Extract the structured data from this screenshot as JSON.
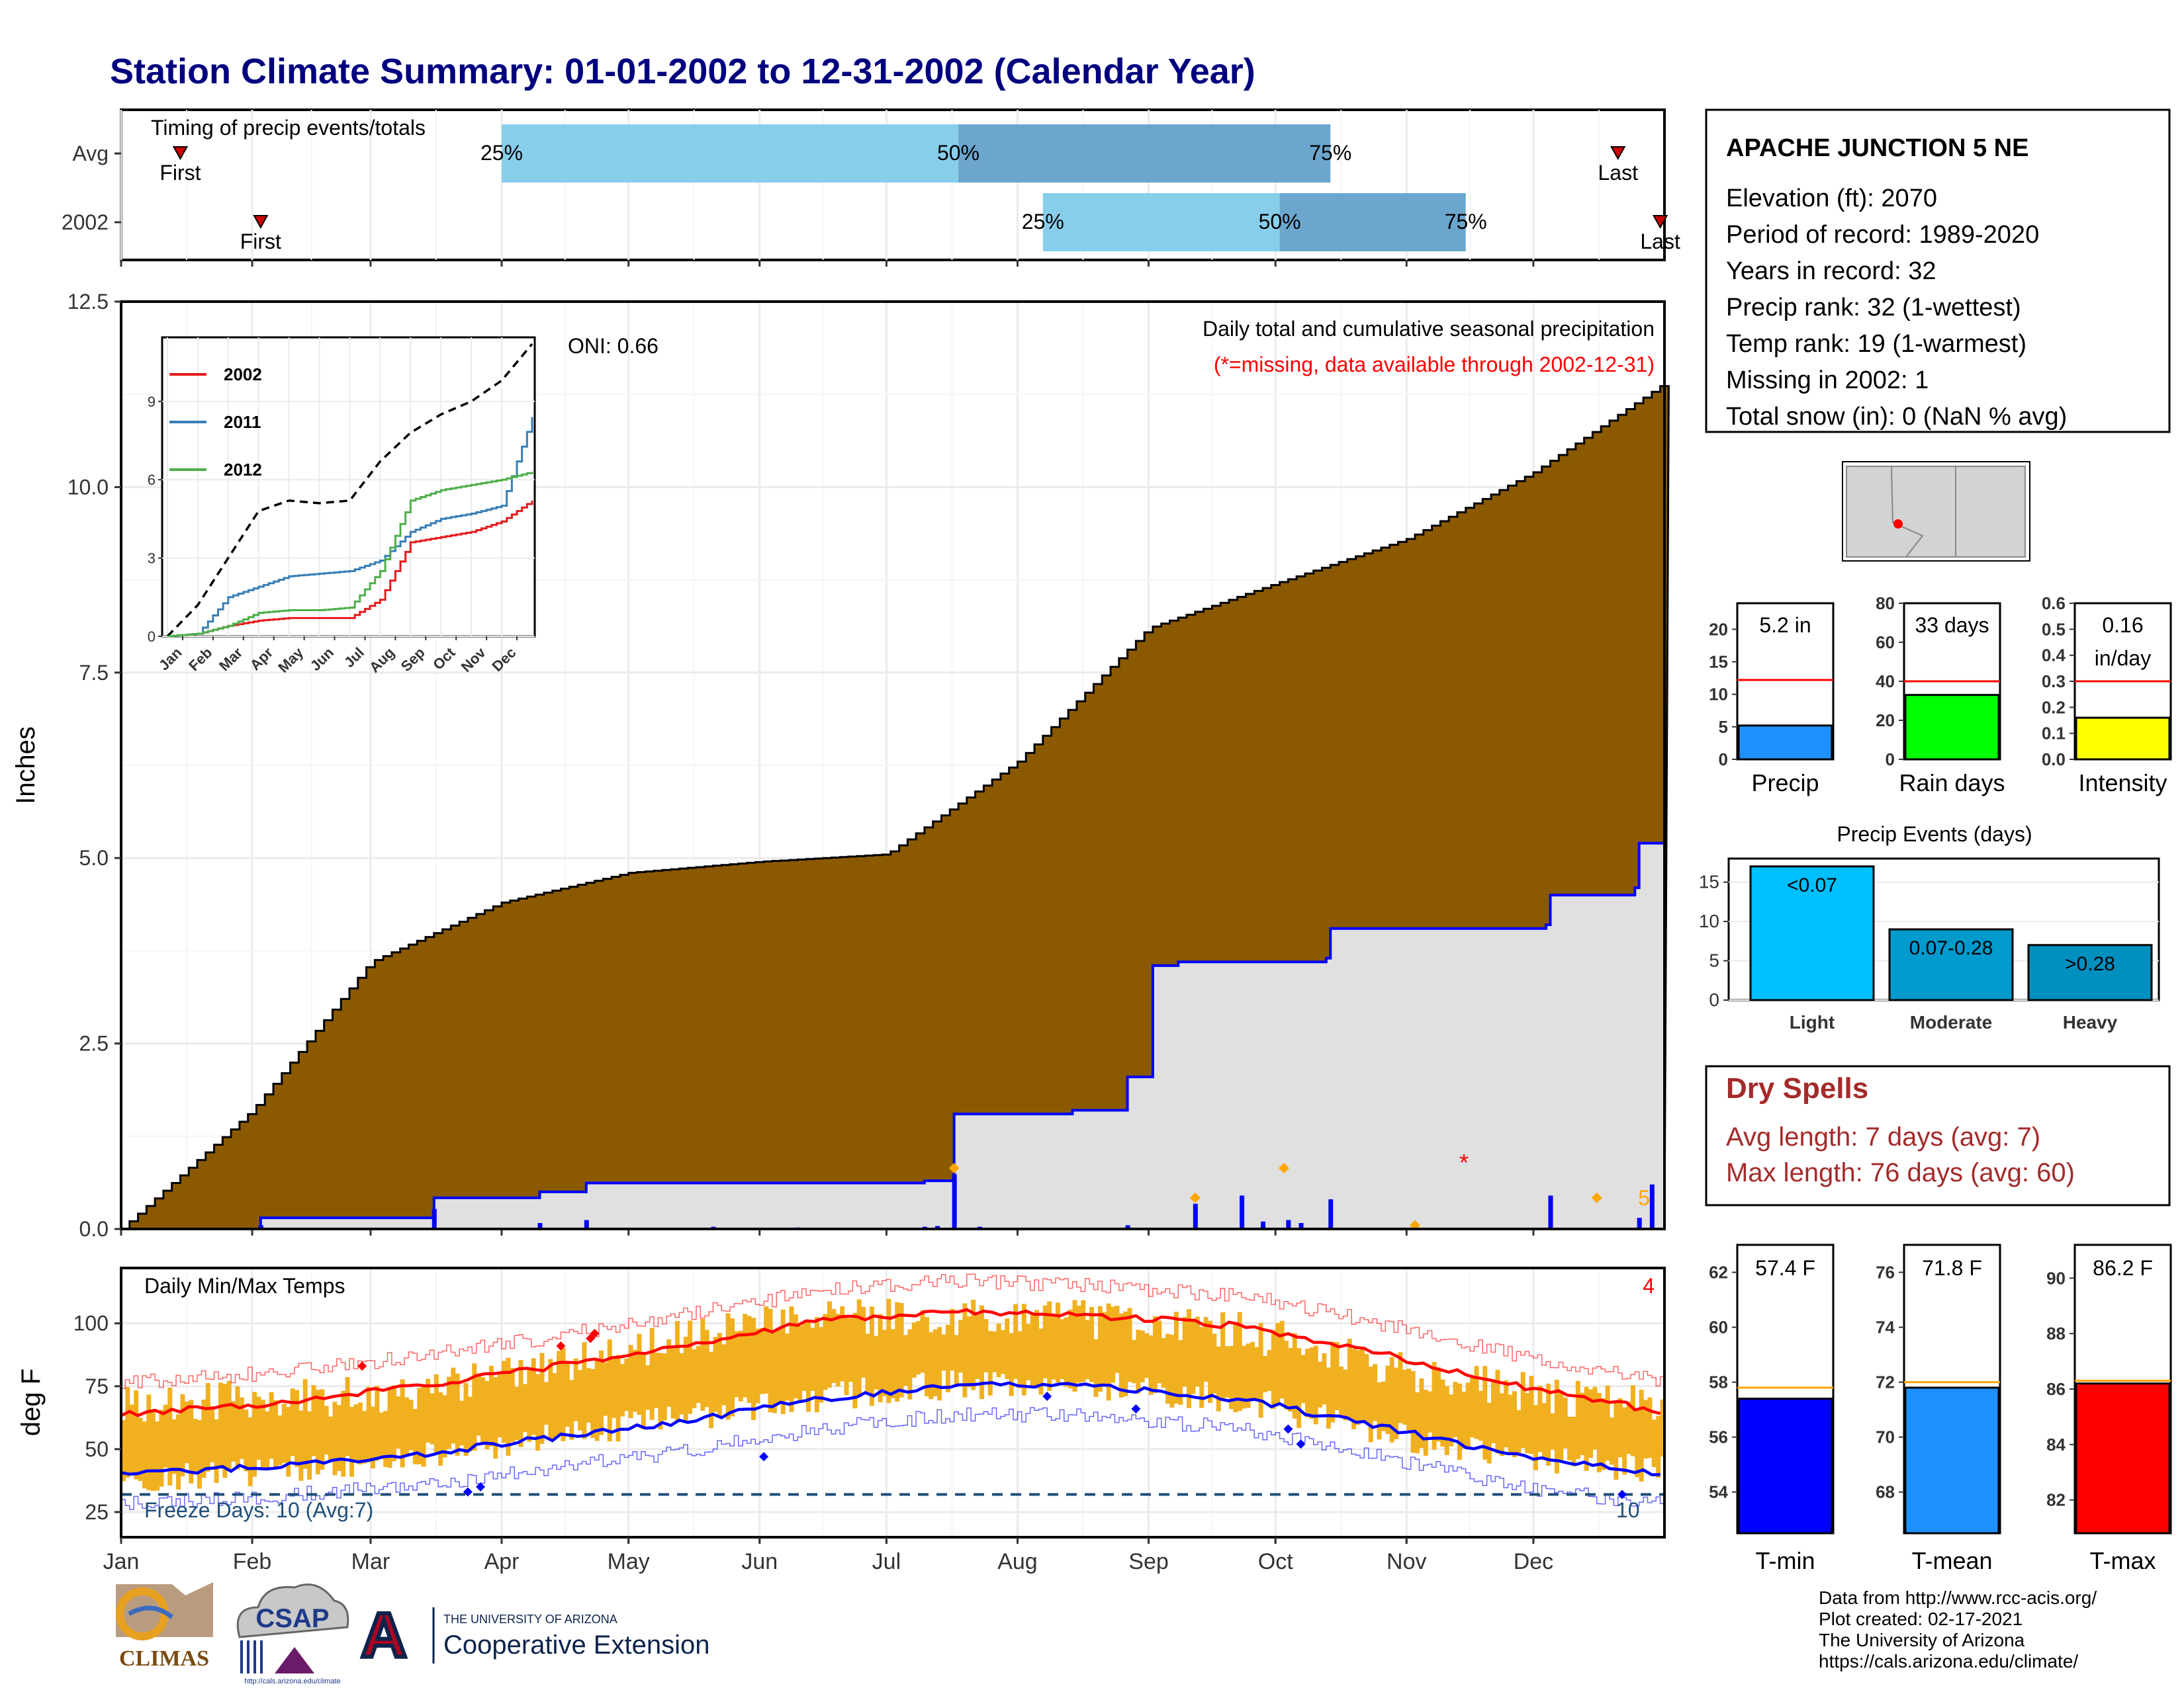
{
  "title": "Station Climate Summary: 01-01-2002 to 12-31-2002 (Calendar Year)",
  "timing": {
    "label": "Timing of precip events/totals",
    "rows": [
      {
        "name": "Avg",
        "first_doy": 14,
        "last_doy": 354,
        "q25_doy": 90,
        "q50_doy": 198,
        "q75_doy": 286,
        "first_label": "First",
        "last_label": "Last",
        "q25_label": "25%",
        "q50_label": "50%",
        "q75_label": "75%"
      },
      {
        "name": "2002",
        "first_doy": 33,
        "last_doy": 364,
        "q25_doy": 218,
        "q50_doy": 274,
        "q75_doy": 318,
        "first_label": "First",
        "last_label": "Last",
        "q25_label": "25%",
        "q50_label": "50%",
        "q75_label": "75%"
      }
    ]
  },
  "colors": {
    "title": "#00007F",
    "avg_fill": "#8B5A00",
    "year_fill": "#E0E0E0",
    "year_line": "#0000FF",
    "q1_band": "#87CEEB",
    "q2_band": "#6CA6CD",
    "temp_bar": "#F0B020",
    "tmax_avg": "#FF0000",
    "tmin_avg": "#0000FF",
    "dry_text": "#A52A2A",
    "freeze_line": "#1F4E79",
    "event_marker": "#FFA500"
  },
  "precip_chart": {
    "ylabel": "Inches",
    "yticks": [
      "0.0",
      "2.5",
      "5.0",
      "7.5",
      "10.0",
      "12.5"
    ],
    "oni": "ONI: 0.66",
    "subtitle": "Daily total and cumulative seasonal precipitation",
    "missing_note": "(*=missing, data available through 2002-12-31)",
    "right_count": "5",
    "missing_marker": "*"
  },
  "inset": {
    "yticks": [
      "0",
      "3",
      "6",
      "9"
    ],
    "months": [
      "Jan",
      "Feb",
      "Mar",
      "Apr",
      "May",
      "Jun",
      "Jul",
      "Aug",
      "Sep",
      "Oct",
      "Nov",
      "Dec"
    ],
    "legend": [
      {
        "name": "2002",
        "color": "#E41A1C"
      },
      {
        "name": "2011",
        "color": "#377EB8"
      },
      {
        "name": "2012",
        "color": "#4DAF4A"
      }
    ]
  },
  "temp_chart": {
    "title": "Daily Min/Max Temps",
    "ylabel": "deg F",
    "yticks": [
      "25",
      "50",
      "75",
      "100"
    ],
    "freeze_label": "Freeze Days: 10 (Avg:7)",
    "freeze_count": "10",
    "corner_count": "4"
  },
  "x_months": [
    "Jan",
    "Feb",
    "Mar",
    "Apr",
    "May",
    "Jun",
    "Jul",
    "Aug",
    "Sep",
    "Oct",
    "Nov",
    "Dec"
  ],
  "station": {
    "name": "APACHE JUNCTION 5 NE",
    "lines": [
      "Elevation (ft): 2070",
      "Period of record: 1989-2020",
      "Years in record: 32",
      "Precip rank: 32 (1-wettest)",
      "Temp rank: 19 (1-warmest)",
      "Missing in 2002: 1",
      "Total snow (in): 0 (NaN % avg)"
    ]
  },
  "mini_bars": [
    {
      "name": "Precip",
      "value": 5.2,
      "avg": 12.2,
      "label1": "5.2 in",
      "label2": "",
      "ymax": 24,
      "ticks": [
        "0",
        "5",
        "10",
        "15",
        "20"
      ],
      "tickvals": [
        0,
        5,
        10,
        15,
        20
      ],
      "color": "#1E90FF"
    },
    {
      "name": "Rain days",
      "value": 33,
      "avg": 40,
      "label1": "33 days",
      "label2": "",
      "ymax": 80,
      "ticks": [
        "0",
        "20",
        "40",
        "60",
        "80"
      ],
      "tickvals": [
        0,
        20,
        40,
        60,
        80
      ],
      "color": "#00FF00"
    },
    {
      "name": "Intensity",
      "value": 0.16,
      "avg": 0.3,
      "label1": "0.16",
      "label2": "in/day",
      "ymax": 0.6,
      "ticks": [
        "0.0",
        "0.1",
        "0.2",
        "0.3",
        "0.4",
        "0.5",
        "0.6"
      ],
      "tickvals": [
        0,
        0.1,
        0.2,
        0.3,
        0.4,
        0.5,
        0.6
      ],
      "color": "#FFFF00"
    }
  ],
  "precip_events": {
    "title": "Precip Events (days)",
    "ticks": [
      "0",
      "5",
      "10",
      "15"
    ],
    "bars": [
      {
        "name": "Light",
        "value": 17,
        "label": "<0.07",
        "color": "#00BFFF"
      },
      {
        "name": "Moderate",
        "value": 9,
        "label": "0.07-0.28",
        "color": "#009ACD"
      },
      {
        "name": "Heavy",
        "value": 7,
        "label": ">0.28",
        "color": "#0090C0"
      }
    ]
  },
  "dry_spells": {
    "title": "Dry Spells",
    "avg_line": "Avg length: 7 days (avg: 7)",
    "max_line": "Max length: 76 days (avg: 60)"
  },
  "temp_bars": [
    {
      "name": "T-min",
      "value": 57.4,
      "avg": 57.8,
      "label": "57.4 F",
      "ymin": 52.5,
      "ymax": 63,
      "ticks": [
        "54",
        "56",
        "58",
        "60",
        "62"
      ],
      "tickvals": [
        54,
        56,
        58,
        60,
        62
      ],
      "color": "#0000FF"
    },
    {
      "name": "T-mean",
      "value": 71.8,
      "avg": 72.0,
      "label": "71.8 F",
      "ymin": 66.5,
      "ymax": 77,
      "ticks": [
        "68",
        "70",
        "72",
        "74",
        "76"
      ],
      "tickvals": [
        68,
        70,
        72,
        74,
        76
      ],
      "color": "#1E90FF"
    },
    {
      "name": "T-max",
      "value": 86.2,
      "avg": 86.3,
      "label": "86.2 F",
      "ymin": 80.8,
      "ymax": 91.2,
      "ticks": [
        "82",
        "84",
        "86",
        "88",
        "90"
      ],
      "tickvals": [
        82,
        84,
        86,
        88,
        90
      ],
      "color": "#FF0000"
    }
  ],
  "footer": {
    "lines": [
      "Data from http://www.rcc-acis.org/",
      "Plot created: 02-17-2021",
      "The University of Arizona",
      "https://cals.arizona.edu/climate/"
    ]
  },
  "logos": {
    "climas": "CLIMAS",
    "csap": "CSAP",
    "csap_url": "http://cals.arizona.edu/climate",
    "ua_letter": "A",
    "ua_small": "THE UNIVERSITY OF ARIZONA",
    "ua_big": "Cooperative Extension"
  },
  "chart_data": [
    {
      "type": "area",
      "title": "Daily total and cumulative seasonal precipitation",
      "ylabel": "Inches",
      "ylim": [
        0,
        12.5
      ],
      "x": [
        "01-01",
        "02-01",
        "03-01",
        "04-01",
        "05-01",
        "06-01",
        "07-01",
        "08-01",
        "09-01",
        "10-01",
        "11-01",
        "12-01",
        "12-31"
      ],
      "series": [
        {
          "values": [
            0.0,
            1.6,
            3.6,
            4.4,
            4.8,
            4.95,
            5.05,
            6.3,
            8.1,
            8.7,
            9.3,
            10.2,
            11.4
          ]
        },
        {
          "name": "2002",
          "values": [
            0.0,
            0.15,
            0.15,
            0.42,
            0.62,
            0.65,
            0.65,
            1.55,
            3.6,
            3.65,
            4.05,
            4.5,
            5.2
          ]
        }
      ]
    },
    {
      "type": "line",
      "x": [
        "Jan",
        "Feb",
        "Mar",
        "Apr",
        "May",
        "Jun",
        "Jul",
        "Aug",
        "Sep",
        "Oct",
        "Nov",
        "Dec",
        "Dec-end"
      ],
      "yticks": [
        0,
        3,
        6,
        9
      ],
      "series": [
        {
          "values": [
            0.0,
            1.2,
            3.0,
            4.8,
            5.2,
            5.1,
            5.2,
            6.7,
            7.8,
            8.5,
            9.0,
            9.8,
            11.2
          ]
        },
        {
          "name": "2002",
          "values": [
            0.0,
            0.1,
            0.4,
            0.6,
            0.7,
            0.7,
            0.7,
            1.4,
            3.6,
            3.8,
            4.0,
            4.4,
            5.2
          ]
        },
        {
          "name": "2011",
          "values": [
            0.0,
            0.1,
            1.5,
            1.9,
            2.3,
            2.4,
            2.5,
            2.9,
            4.0,
            4.5,
            4.7,
            5.0,
            8.4
          ]
        },
        {
          "name": "2012",
          "values": [
            0.0,
            0.1,
            0.4,
            0.9,
            1.0,
            1.0,
            1.1,
            2.5,
            5.2,
            5.6,
            5.8,
            6.0,
            6.3
          ]
        }
      ]
    },
    {
      "type": "line",
      "title": "Daily Min/Max Temps",
      "ylabel": "deg F",
      "x": [
        "Jan",
        "Feb",
        "Mar",
        "Apr",
        "May",
        "Jun",
        "Jul",
        "Aug",
        "Sep",
        "Oct",
        "Nov",
        "Dec"
      ],
      "series": [
        {
          "name": "avg max",
          "values": [
            64,
            68,
            74,
            82,
            91,
            101,
            105,
            103,
            99,
            88,
            75,
            65
          ]
        },
        {
          "name": "avg min",
          "values": [
            40,
            43,
            47,
            54,
            61,
            70,
            76,
            75,
            70,
            59,
            47,
            40
          ]
        },
        {
          "name": "2002 max",
          "values": [
            67,
            70,
            72,
            83,
            94,
            102,
            103,
            101,
            97,
            83,
            73,
            66
          ]
        },
        {
          "name": "2002 min",
          "values": [
            37,
            41,
            46,
            55,
            62,
            71,
            76,
            75,
            70,
            56,
            46,
            42
          ]
        }
      ]
    },
    {
      "type": "bar",
      "categories": [
        "Precip",
        "Rain days",
        "Intensity"
      ],
      "values": [
        5.2,
        33,
        0.16
      ]
    },
    {
      "type": "bar",
      "title": "Precip Events (days)",
      "categories": [
        "Light",
        "Moderate",
        "Heavy"
      ],
      "values": [
        17,
        9,
        7
      ]
    },
    {
      "type": "bar",
      "categories": [
        "T-min",
        "T-mean",
        "T-max"
      ],
      "values": [
        57.4,
        71.8,
        86.2
      ]
    }
  ]
}
